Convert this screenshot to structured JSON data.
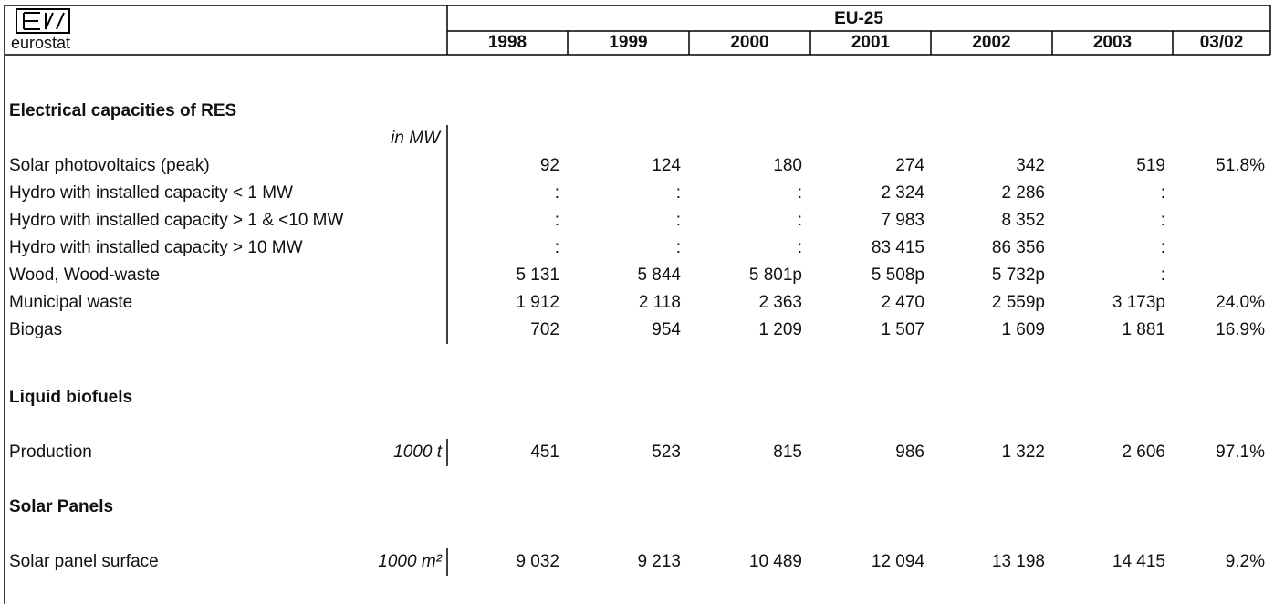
{
  "header": {
    "logo_text": "eurostat",
    "region": "EU-25",
    "columns": [
      "1998",
      "1999",
      "2000",
      "2001",
      "2002",
      "2003",
      "03/02"
    ]
  },
  "sections": [
    {
      "title": "Electrical capacities of RES",
      "unit": "in MW",
      "rows": [
        {
          "label": "Solar photovoltaics (peak)",
          "values": [
            "92",
            "124",
            "180",
            "274",
            "342",
            "519",
            "51.8%"
          ]
        },
        {
          "label": "Hydro with installed capacity < 1 MW",
          "values": [
            ":",
            ":",
            ":",
            "2 324",
            "2 286",
            ":",
            null
          ]
        },
        {
          "label": "Hydro with installed capacity > 1 & <10 MW",
          "values": [
            ":",
            ":",
            ":",
            "7 983",
            "8 352",
            ":",
            null
          ]
        },
        {
          "label": "Hydro with installed capacity > 10 MW",
          "values": [
            ":",
            ":",
            ":",
            "83 415",
            "86 356",
            ":",
            null
          ]
        },
        {
          "label": "Wood, Wood-waste",
          "values": [
            "5 131",
            "5 844",
            "5 801p",
            "5 508p",
            "5 732p",
            ":",
            null
          ]
        },
        {
          "label": "Municipal waste",
          "values": [
            "1 912",
            "2 118",
            "2 363",
            "2 470",
            "2 559p",
            "3 173p",
            "24.0%"
          ]
        },
        {
          "label": "Biogas",
          "values": [
            "702",
            "954",
            "1 209",
            "1 507",
            "1 609",
            "1 881",
            "16.9%"
          ]
        }
      ]
    },
    {
      "title": "Liquid biofuels",
      "rows": [
        {
          "label": "Production",
          "unit": "1000 t",
          "values": [
            "451",
            "523",
            "815",
            "986",
            "1 322",
            "2 606",
            "97.1%"
          ]
        }
      ]
    },
    {
      "title": "Solar Panels",
      "rows": [
        {
          "label": "Solar panel surface",
          "unit": "1000 m²",
          "values": [
            "9 032",
            "9 213",
            "10 489",
            "12 094",
            "13 198",
            "14 415",
            "9.2%"
          ]
        }
      ]
    }
  ]
}
